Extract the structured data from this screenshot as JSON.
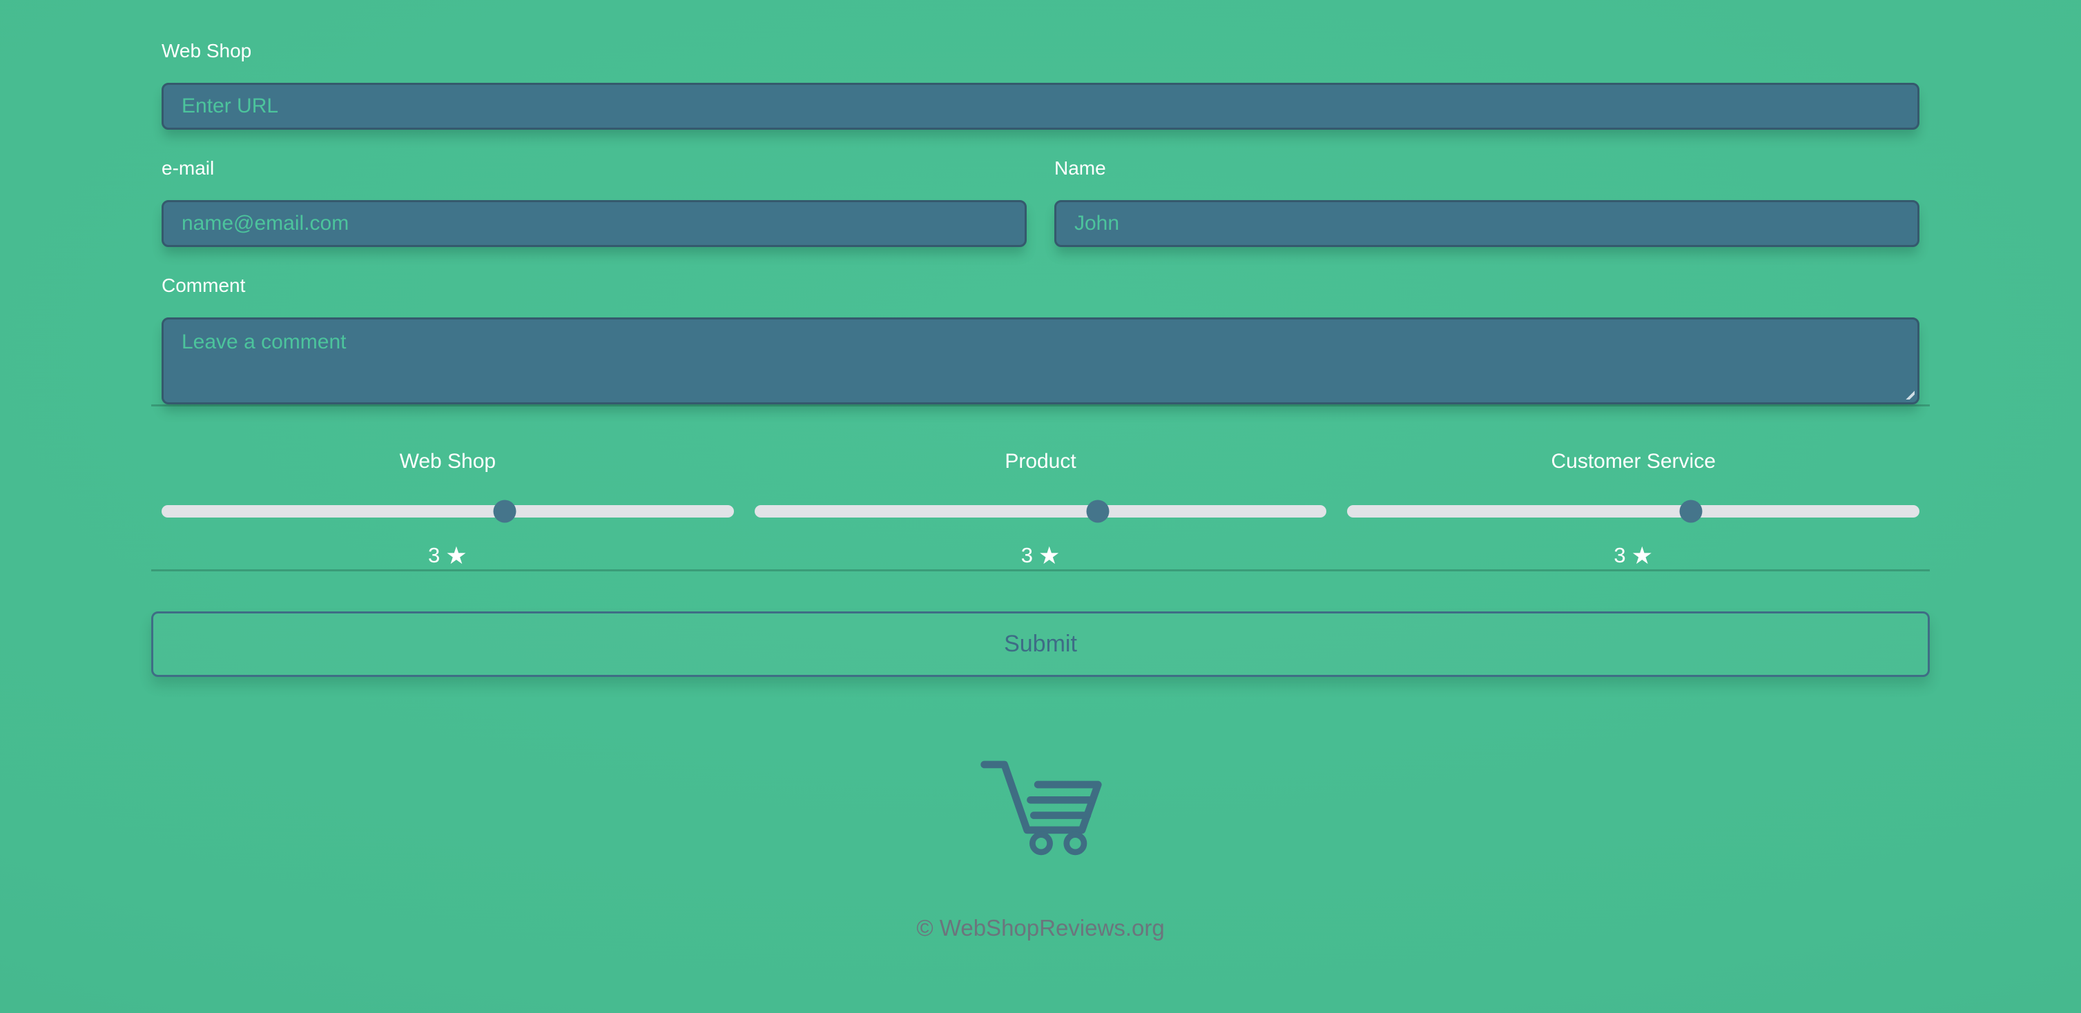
{
  "form": {
    "webshop_label": "Web Shop",
    "url_placeholder": "Enter URL",
    "email_label": "e-mail",
    "email_placeholder": "name@email.com",
    "name_label": "Name",
    "name_placeholder": "John",
    "comment_label": "Comment",
    "comment_placeholder": "Leave a comment"
  },
  "ratings": [
    {
      "label": "Web Shop",
      "value": "3",
      "star": "★",
      "percent": 60,
      "max": 5
    },
    {
      "label": "Product",
      "value": "3",
      "star": "★",
      "percent": 60,
      "max": 5
    },
    {
      "label": "Customer Service",
      "value": "3",
      "star": "★",
      "percent": 60,
      "max": 5
    }
  ],
  "submit_label": "Submit",
  "footer": {
    "copyright": "© WebShopReviews.org"
  },
  "icons": {
    "cart": "shopping-cart-icon"
  },
  "colors": {
    "page_background": "#47bb90",
    "input_background": "#40748a",
    "input_border": "#35596d",
    "placeholder_text": "#4cc49c",
    "slider_track": "#e1e3e7",
    "slider_thumb": "#45758b",
    "submit_accent": "#3f6d85",
    "footer_text": "#6c757d",
    "label_text": "#ffffff"
  }
}
